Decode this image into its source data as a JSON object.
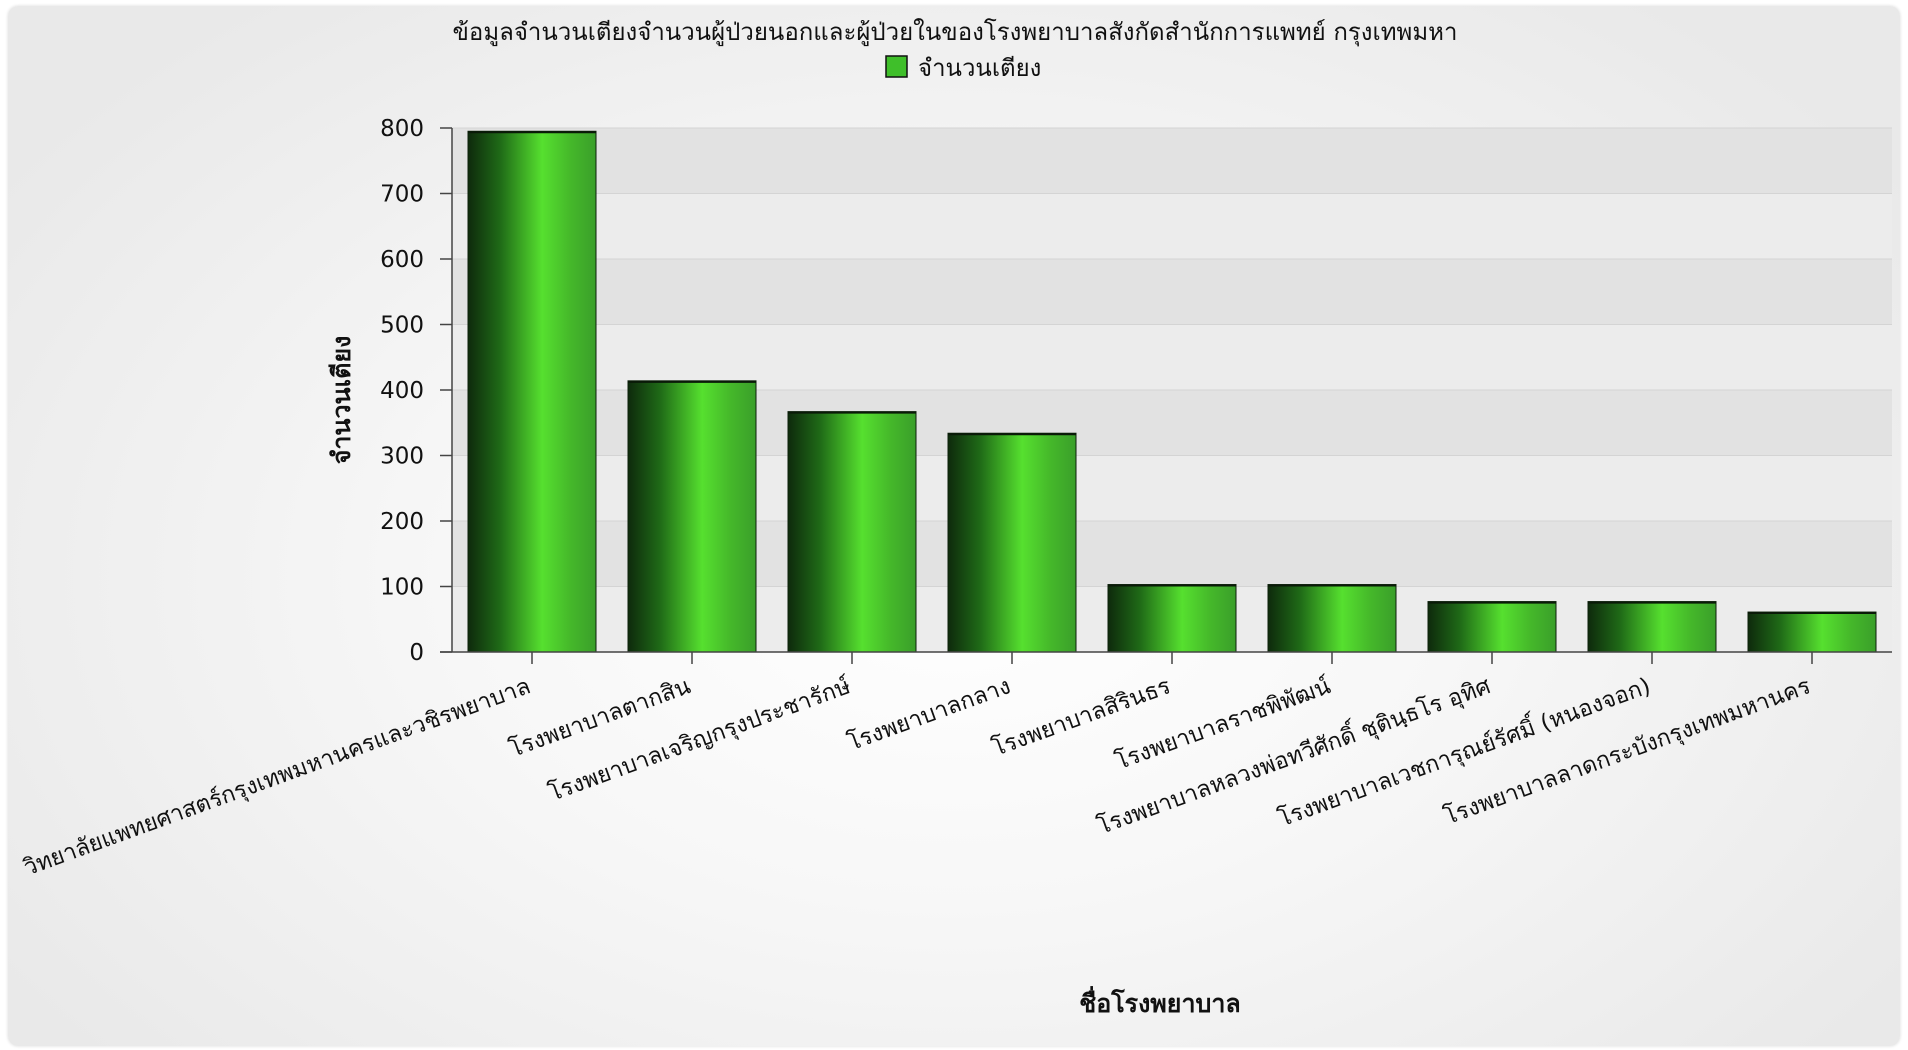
{
  "chart_data": {
    "type": "bar",
    "title": "ข้อมูลจำนวนเตียงจำนวนผู้ป่วยนอกและผู้ป่วยในของโรงพยาบาลสังกัดสำนักการแพทย์ กรุงเทพมหา",
    "xlabel": "ชื่อโรงพยาบาล",
    "ylabel": "จำนวนเตียง",
    "ylim": [
      0,
      800
    ],
    "yticks": [
      0,
      100,
      200,
      300,
      400,
      500,
      600,
      700,
      800
    ],
    "legend_position": "top-center",
    "grid": true,
    "series": [
      {
        "name": "จำนวนเตียง",
        "color": "#3fbf2a",
        "values": [
          795,
          414,
          367,
          334,
          103,
          103,
          77,
          77,
          61
        ]
      }
    ],
    "categories": [
      "วิทยาลัยแพทยศาสตร์กรุงเทพมหานครและวชิรพยาบาล",
      "โรงพยาบาลตากสิน",
      "โรงพยาบาลเจริญกรุงประชารักษ์",
      "โรงพยาบาลกลาง",
      "โรงพยาบาลสิรินธร",
      "โรงพยาบาลราชพิพัฒน์",
      "โรงพยาบาลหลวงพ่อทวีศักดิ์ ชุตินฺธโร อุทิศ",
      "โรงพยาบาลเวชการุณย์รัศมิ์ (หนองจอก)",
      "โรงพยาบาลลาดกระบังกรุงเทพมหานคร"
    ]
  }
}
